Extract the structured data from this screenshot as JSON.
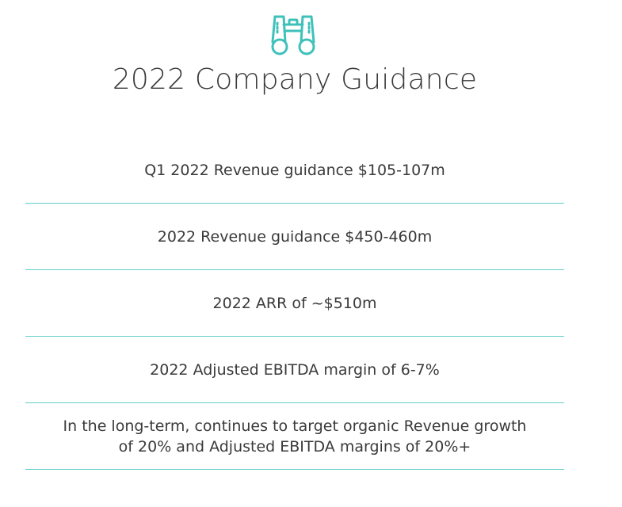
{
  "header": {
    "icon": "binoculars-icon",
    "title": "2022 Company Guidance"
  },
  "guidance": [
    {
      "text": "Q1 2022 Revenue guidance $105-107m"
    },
    {
      "text": "2022 Revenue guidance $450-460m"
    },
    {
      "text": "2022 ARR of ~$510m"
    },
    {
      "text": "2022 Adjusted EBITDA margin of 6-7%"
    },
    {
      "text": "In the long-term, continues to target organic Revenue growth\nof 20% and Adjusted EBITDA margins of 20%+"
    }
  ],
  "colors": {
    "accent": "#63cfc9",
    "text": "#3a3a3a"
  }
}
